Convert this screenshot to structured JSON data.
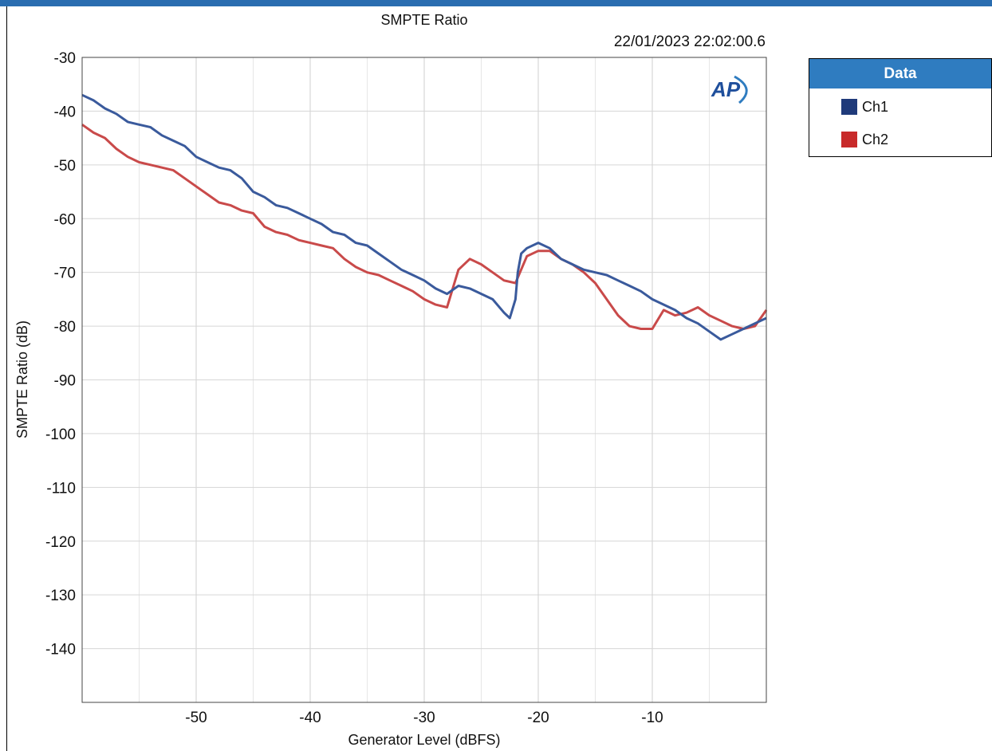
{
  "chart_data": {
    "type": "line",
    "title": "SMPTE Ratio",
    "timestamp": "22/01/2023 22:02:00.6",
    "xlabel": "Generator Level (dBFS)",
    "ylabel": "SMPTE Ratio (dB)",
    "xlim": [
      -60,
      0
    ],
    "ylim": [
      -150,
      -30
    ],
    "x_ticks": [
      -50,
      -40,
      -30,
      -20,
      -10
    ],
    "y_ticks": [
      -30,
      -40,
      -50,
      -60,
      -70,
      -80,
      -90,
      -100,
      -110,
      -120,
      -130,
      -140
    ],
    "grid": true,
    "legend_title": "Data",
    "logo_text": "AP",
    "series": [
      {
        "name": "Ch1",
        "color": "#3a5a9c",
        "points": [
          [
            -60,
            -37
          ],
          [
            -59,
            -38
          ],
          [
            -58,
            -39.5
          ],
          [
            -57,
            -40.5
          ],
          [
            -56,
            -42
          ],
          [
            -55,
            -42.5
          ],
          [
            -54,
            -43
          ],
          [
            -53,
            -44.5
          ],
          [
            -52,
            -45.5
          ],
          [
            -51,
            -46.5
          ],
          [
            -50,
            -48.5
          ],
          [
            -49,
            -49.5
          ],
          [
            -48,
            -50.5
          ],
          [
            -47,
            -51
          ],
          [
            -46,
            -52.5
          ],
          [
            -45,
            -55
          ],
          [
            -44,
            -56
          ],
          [
            -43,
            -57.5
          ],
          [
            -42,
            -58
          ],
          [
            -41,
            -59
          ],
          [
            -40,
            -60
          ],
          [
            -39,
            -61
          ],
          [
            -38,
            -62.5
          ],
          [
            -37,
            -63
          ],
          [
            -36,
            -64.5
          ],
          [
            -35,
            -65
          ],
          [
            -34,
            -66.5
          ],
          [
            -33,
            -68
          ],
          [
            -32,
            -69.5
          ],
          [
            -31,
            -70.5
          ],
          [
            -30,
            -71.5
          ],
          [
            -29,
            -73
          ],
          [
            -28,
            -74
          ],
          [
            -27,
            -72.5
          ],
          [
            -26,
            -73
          ],
          [
            -25,
            -74
          ],
          [
            -24,
            -75
          ],
          [
            -23,
            -77.5
          ],
          [
            -22.5,
            -78.5
          ],
          [
            -22,
            -75
          ],
          [
            -21.8,
            -70
          ],
          [
            -21.5,
            -66.5
          ],
          [
            -21,
            -65.5
          ],
          [
            -20,
            -64.5
          ],
          [
            -19,
            -65.5
          ],
          [
            -18,
            -67.5
          ],
          [
            -17,
            -68.5
          ],
          [
            -16,
            -69.5
          ],
          [
            -15,
            -70
          ],
          [
            -14,
            -70.5
          ],
          [
            -13,
            -71.5
          ],
          [
            -12,
            -72.5
          ],
          [
            -11,
            -73.5
          ],
          [
            -10,
            -75
          ],
          [
            -9,
            -76
          ],
          [
            -8,
            -77
          ],
          [
            -7,
            -78.5
          ],
          [
            -6,
            -79.5
          ],
          [
            -5,
            -81
          ],
          [
            -4,
            -82.5
          ],
          [
            -3,
            -81.5
          ],
          [
            -2,
            -80.5
          ],
          [
            -1,
            -79.5
          ],
          [
            0,
            -78.5
          ]
        ]
      },
      {
        "name": "Ch2",
        "color": "#c94a4a",
        "points": [
          [
            -60,
            -42.5
          ],
          [
            -59,
            -44
          ],
          [
            -58,
            -45
          ],
          [
            -57,
            -47
          ],
          [
            -56,
            -48.5
          ],
          [
            -55,
            -49.5
          ],
          [
            -54,
            -50
          ],
          [
            -53,
            -50.5
          ],
          [
            -52,
            -51
          ],
          [
            -51,
            -52.5
          ],
          [
            -50,
            -54
          ],
          [
            -49,
            -55.5
          ],
          [
            -48,
            -57
          ],
          [
            -47,
            -57.5
          ],
          [
            -46,
            -58.5
          ],
          [
            -45,
            -59
          ],
          [
            -44,
            -61.5
          ],
          [
            -43,
            -62.5
          ],
          [
            -42,
            -63
          ],
          [
            -41,
            -64
          ],
          [
            -40,
            -64.5
          ],
          [
            -39,
            -65
          ],
          [
            -38,
            -65.5
          ],
          [
            -37,
            -67.5
          ],
          [
            -36,
            -69
          ],
          [
            -35,
            -70
          ],
          [
            -34,
            -70.5
          ],
          [
            -33,
            -71.5
          ],
          [
            -32,
            -72.5
          ],
          [
            -31,
            -73.5
          ],
          [
            -30,
            -75
          ],
          [
            -29,
            -76
          ],
          [
            -28,
            -76.5
          ],
          [
            -27,
            -69.5
          ],
          [
            -26,
            -67.5
          ],
          [
            -25,
            -68.5
          ],
          [
            -24,
            -70
          ],
          [
            -23,
            -71.5
          ],
          [
            -22,
            -72
          ],
          [
            -21,
            -67
          ],
          [
            -20,
            -66
          ],
          [
            -19,
            -66
          ],
          [
            -18,
            -67.5
          ],
          [
            -17,
            -68.5
          ],
          [
            -16,
            -70
          ],
          [
            -15,
            -72
          ],
          [
            -14,
            -75
          ],
          [
            -13,
            -78
          ],
          [
            -12,
            -80
          ],
          [
            -11,
            -80.5
          ],
          [
            -10,
            -80.5
          ],
          [
            -9,
            -77
          ],
          [
            -8,
            -78
          ],
          [
            -7,
            -77.5
          ],
          [
            -6,
            -76.5
          ],
          [
            -5,
            -78
          ],
          [
            -4,
            -79
          ],
          [
            -3,
            -80
          ],
          [
            -2,
            -80.5
          ],
          [
            -1,
            -80
          ],
          [
            0,
            -77
          ]
        ]
      }
    ]
  }
}
